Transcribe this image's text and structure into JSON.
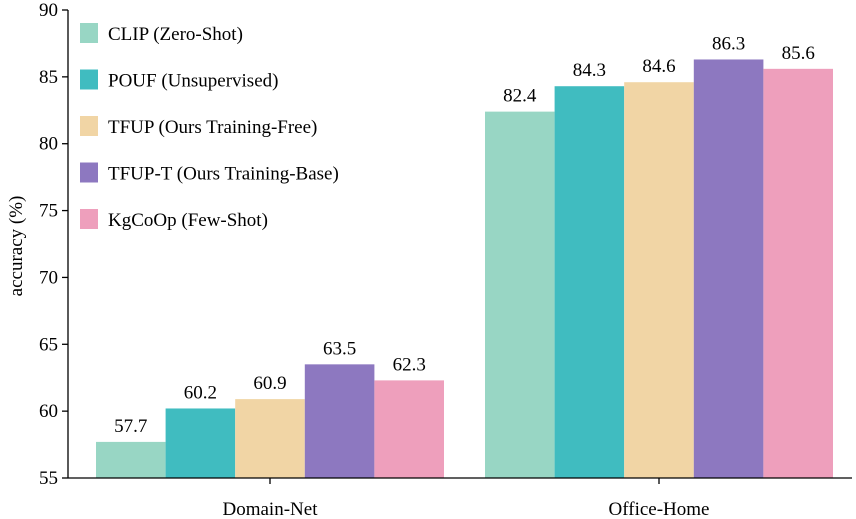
{
  "chart_data": {
    "type": "bar",
    "categories": [
      "Domain-Net",
      "Office-Home"
    ],
    "series": [
      {
        "name": "CLIP (Zero-Shot)",
        "color": "#98d6c4",
        "values": [
          57.7,
          82.4
        ]
      },
      {
        "name": "POUF (Unsupervised)",
        "color": "#40bcc0",
        "values": [
          60.2,
          84.3
        ]
      },
      {
        "name": "TFUP (Ours Training-Free)",
        "color": "#f1d5a5",
        "values": [
          60.9,
          84.6
        ]
      },
      {
        "name": "TFUP-T (Ours Training-Base)",
        "color": "#8d78c0",
        "values": [
          63.5,
          86.3
        ]
      },
      {
        "name": "KgCoOp (Few-Shot)",
        "color": "#ee9fbc",
        "values": [
          62.3,
          85.6
        ]
      }
    ],
    "xlabel": "",
    "ylabel": "accuracy (%)",
    "ylim": [
      55,
      90
    ],
    "yticks": [
      55,
      60,
      65,
      70,
      75,
      80,
      85,
      90
    ],
    "legend_position": "top-left",
    "grid": false
  }
}
